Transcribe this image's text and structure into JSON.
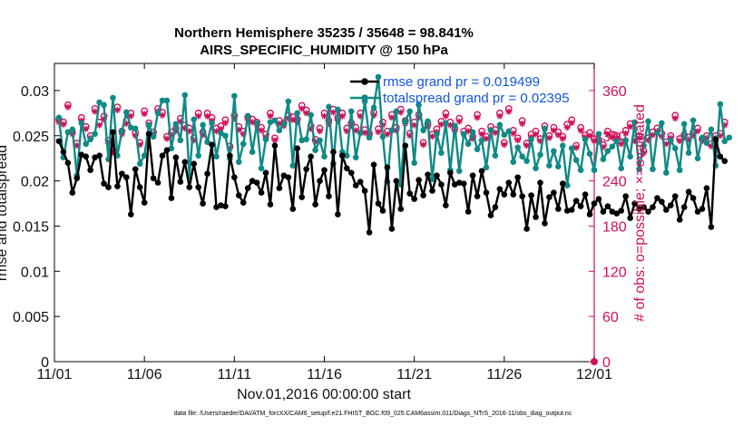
{
  "chart_data": {
    "type": "line",
    "title_line1": "Northern Hemisphere 35235 / 35648 = 98.841%",
    "title_line2": "AIRS_SPECIFIC_HUMIDITY @ 150 hPa",
    "xlabel": "Nov.01,2016 00:00:00 start",
    "ylabel_left": "rmse and totalspread",
    "ylabel_right": "# of obs: o=possible; ×=evaluated",
    "footnote": "data file: /Users/raeder/DAI/ATM_forcXX/CAM6_setup/f.e21.FHIST_BGC.f09_025.CAM6assim.011/Diags_NTrS_2016-11/obs_diag_output.nc",
    "x_ticks": [
      "11/01",
      "11/06",
      "11/11",
      "11/16",
      "11/21",
      "11/26",
      "12/01"
    ],
    "xlim_days": [
      0,
      30
    ],
    "y_left": {
      "ylim": [
        0,
        0.033
      ],
      "ticks": [
        "0",
        "0.005",
        "0.01",
        "0.015",
        "0.02",
        "0.025",
        "0.03"
      ],
      "tick_values": [
        0,
        0.005,
        0.01,
        0.015,
        0.02,
        0.025,
        0.03
      ]
    },
    "y_right": {
      "ylim": [
        0,
        396
      ],
      "ticks": [
        "0",
        "60",
        "120",
        "180",
        "240",
        "300",
        "360"
      ],
      "tick_values": [
        0,
        60,
        120,
        180,
        240,
        300,
        360
      ]
    },
    "legend": {
      "placement": "top-right",
      "entries": [
        "rmse grand pr = 0.019499",
        "totalspread grand pr = 0.02395"
      ]
    },
    "colors": {
      "rmse": "#000000",
      "totalspread": "#0f8a86",
      "obs": "#d0105a",
      "axis": "#000000"
    },
    "series": [
      {
        "name": "rmse grand pr = 0.019499",
        "x_start": 0.25,
        "x_step": 0.25,
        "values": [
          0.0244,
          0.0232,
          0.022,
          0.0187,
          0.0203,
          0.0229,
          0.0227,
          0.0212,
          0.0226,
          0.0228,
          0.0197,
          0.0193,
          0.0254,
          0.0194,
          0.0208,
          0.0204,
          0.0163,
          0.0213,
          0.0193,
          0.0176,
          0.0252,
          0.0203,
          0.0198,
          0.0228,
          0.0234,
          0.0181,
          0.0226,
          0.0199,
          0.0221,
          0.0193,
          0.0219,
          0.0193,
          0.0175,
          0.0208,
          0.024,
          0.0171,
          0.0173,
          0.0172,
          0.0228,
          0.0204,
          0.0184,
          0.0176,
          0.0192,
          0.02,
          0.0198,
          0.0187,
          0.0209,
          0.0174,
          0.0239,
          0.0192,
          0.0206,
          0.0204,
          0.0169,
          0.0236,
          0.0182,
          0.0213,
          0.0227,
          0.0174,
          0.02,
          0.0212,
          0.0183,
          0.0232,
          0.0163,
          0.0228,
          0.0214,
          0.0209,
          0.0195,
          0.0199,
          0.0189,
          0.0143,
          0.0218,
          0.0175,
          0.0167,
          0.0215,
          0.0147,
          0.02,
          0.0169,
          0.0239,
          0.0186,
          0.018,
          0.0201,
          0.0184,
          0.0207,
          0.0189,
          0.0206,
          0.0196,
          0.0173,
          0.0209,
          0.0196,
          0.0198,
          0.0197,
          0.0166,
          0.0206,
          0.0183,
          0.0211,
          0.0187,
          0.0162,
          0.0171,
          0.0191,
          0.0185,
          0.0198,
          0.0185,
          0.0204,
          0.0183,
          0.0147,
          0.0184,
          0.016,
          0.0198,
          0.0153,
          0.0182,
          0.0187,
          0.0169,
          0.0197,
          0.0167,
          0.0168,
          0.0178,
          0.0172,
          0.0185,
          0.0163,
          0.0175,
          0.018,
          0.0166,
          0.0172,
          0.0166,
          0.0164,
          0.0167,
          0.0183,
          0.0159,
          0.0175,
          0.0169,
          0.0171,
          0.0166,
          0.0171,
          0.0181,
          0.0177,
          0.0168,
          0.0173,
          0.0183,
          0.0157,
          0.0171,
          0.0188,
          0.0181,
          0.0166,
          0.0169,
          0.0192,
          0.0149,
          0.0246,
          0.0227,
          0.0222
        ]
      },
      {
        "name": "totalspread grand pr = 0.02395",
        "x_start": 0.25,
        "x_step": 0.25,
        "values": [
          0.027,
          0.0226,
          0.0254,
          0.0257,
          0.0206,
          0.0264,
          0.0241,
          0.0246,
          0.0252,
          0.0287,
          0.0284,
          0.0224,
          0.0292,
          0.0228,
          0.0255,
          0.0276,
          0.0259,
          0.0258,
          0.0219,
          0.0228,
          0.0262,
          0.0249,
          0.0275,
          0.0289,
          0.0289,
          0.0236,
          0.0263,
          0.0245,
          0.0295,
          0.0205,
          0.0268,
          0.0228,
          0.0262,
          0.0243,
          0.0264,
          0.0227,
          0.0253,
          0.025,
          0.0225,
          0.0294,
          0.0221,
          0.0241,
          0.0272,
          0.0232,
          0.0264,
          0.0214,
          0.0246,
          0.0265,
          0.0267,
          0.0256,
          0.0263,
          0.0288,
          0.0217,
          0.0275,
          0.0245,
          0.0246,
          0.0273,
          0.0234,
          0.0245,
          0.0227,
          0.0282,
          0.0219,
          0.0279,
          0.0232,
          0.0228,
          0.0277,
          0.0226,
          0.0253,
          0.0288,
          0.0248,
          0.0281,
          0.0315,
          0.0249,
          0.0199,
          0.0256,
          0.0277,
          0.0196,
          0.0266,
          0.0277,
          0.022,
          0.0284,
          0.0256,
          0.0266,
          0.0202,
          0.0252,
          0.0231,
          0.0264,
          0.0212,
          0.0261,
          0.0211,
          0.0252,
          0.0241,
          0.0254,
          0.0235,
          0.0245,
          0.0215,
          0.0256,
          0.0228,
          0.0262,
          0.0251,
          0.0255,
          0.0221,
          0.0237,
          0.0227,
          0.0222,
          0.0246,
          0.0214,
          0.0229,
          0.0258,
          0.0217,
          0.0233,
          0.0216,
          0.0239,
          0.0195,
          0.0236,
          0.0223,
          0.0212,
          0.0246,
          0.023,
          0.0212,
          0.0252,
          0.0224,
          0.0233,
          0.0238,
          0.0244,
          0.0214,
          0.0245,
          0.0227,
          0.0265,
          0.0213,
          0.0239,
          0.0266,
          0.0213,
          0.0253,
          0.0264,
          0.0209,
          0.0245,
          0.0236,
          0.0212,
          0.0263,
          0.0231,
          0.0267,
          0.0225,
          0.0248,
          0.0242,
          0.0257,
          0.0217,
          0.0285,
          0.0244,
          0.0248
        ]
      },
      {
        "name": "# of obs possible",
        "axis": "right",
        "marker": "o",
        "x_start": 0.25,
        "x_step": 0.25,
        "values": [
          322,
          318,
          341,
          305,
          290,
          324,
          312,
          300,
          336,
          318,
          326,
          294,
          281,
          338,
          306,
          320,
          330,
          304,
          291,
          333,
          317,
          305,
          336,
          331,
          299,
          305,
          310,
          323,
          314,
          310,
          297,
          330,
          305,
          330,
          324,
          310,
          313,
          321,
          286,
          327,
          312,
          306,
          325,
          322,
          318,
          311,
          302,
          330,
          297,
          320,
          317,
          327,
          325,
          322,
          340,
          334,
          313,
          295,
          310,
          330,
          320,
          335,
          324,
          330,
          310,
          317,
          311,
          330,
          308,
          303,
          331,
          309,
          318,
          306,
          328,
          311,
          335,
          320,
          303,
          318,
          328,
          291,
          316,
          302,
          309,
          319,
          330,
          318,
          310,
          323,
          306,
          310,
          299,
          328,
          306,
          299,
          312,
          308,
          330,
          291,
          336,
          307,
          297,
          320,
          290,
          302,
          306,
          296,
          313,
          300,
          311,
          305,
          299,
          315,
          321,
          287,
          311,
          301,
          304,
          296,
          295,
          288,
          306,
          302,
          300,
          292,
          307,
          316,
          296,
          300,
          280,
          297,
          305,
          310,
          303,
          292,
          300,
          327,
          296,
          301,
          298,
          304,
          310,
          296,
          300,
          289,
          300,
          303,
          318
        ]
      },
      {
        "name": "# of obs evaluated",
        "axis": "right",
        "marker": "x",
        "x_start": 0.25,
        "x_step": 0.25,
        "values": [
          318,
          315,
          338,
          302,
          287,
          320,
          309,
          297,
          332,
          314,
          322,
          290,
          278,
          334,
          302,
          316,
          326,
          300,
          288,
          329,
          313,
          301,
          332,
          327,
          296,
          301,
          306,
          319,
          310,
          306,
          294,
          326,
          301,
          326,
          320,
          306,
          309,
          317,
          283,
          323,
          308,
          302,
          321,
          318,
          314,
          307,
          298,
          326,
          294,
          316,
          313,
          323,
          321,
          318,
          336,
          330,
          309,
          292,
          306,
          326,
          316,
          331,
          320,
          326,
          306,
          313,
          307,
          326,
          304,
          300,
          327,
          305,
          314,
          302,
          324,
          307,
          331,
          316,
          300,
          314,
          324,
          288,
          312,
          299,
          305,
          315,
          326,
          314,
          306,
          319,
          302,
          306,
          296,
          324,
          302,
          296,
          308,
          304,
          326,
          288,
          332,
          303,
          294,
          316,
          287,
          298,
          302,
          293,
          309,
          297,
          307,
          301,
          296,
          311,
          317,
          284,
          307,
          298,
          300,
          293,
          292,
          285,
          302,
          298,
          297,
          289,
          303,
          312,
          293,
          297,
          277,
          294,
          301,
          306,
          299,
          289,
          297,
          323,
          293,
          297,
          295,
          300,
          306,
          293,
          297,
          286,
          297,
          300,
          314
        ]
      }
    ]
  }
}
